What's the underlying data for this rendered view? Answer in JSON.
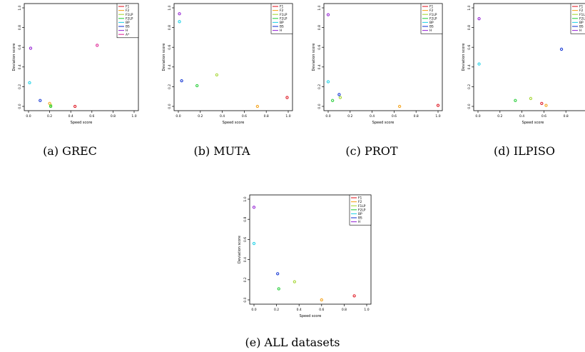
{
  "legend_labels": [
    "F1",
    "F2",
    "F1LP",
    "F2LP",
    "BP",
    "BS",
    "H",
    "A*"
  ],
  "colors": {
    "F1": "#e0212b",
    "F2": "#f5a623",
    "F1LP": "#a8d83a",
    "F2LP": "#2ccf3e",
    "BP": "#2ad4e8",
    "BS": "#1f3fd6",
    "H": "#9b2fd6",
    "A*": "#e0309a"
  },
  "chart_data": [
    {
      "type": "scatter",
      "title": "",
      "caption": "(a) GREC",
      "xlabel": "Speed score",
      "ylabel": "Deviation score",
      "xlim": [
        0,
        1
      ],
      "ylim": [
        0,
        1
      ],
      "xticks": [
        "0.0",
        "0.2",
        "0.4",
        "0.6",
        "0.8",
        "1.0"
      ],
      "yticks": [
        "0.0",
        "0.2",
        "0.4",
        "0.6",
        "0.8",
        "1.0"
      ],
      "legend_position": "top-right",
      "legend": [
        "F1",
        "F2",
        "F1LP",
        "F2LP",
        "BP",
        "BS",
        "H",
        "A*"
      ],
      "series": [
        {
          "name": "F1",
          "x": 0.44,
          "y": 0.0
        },
        {
          "name": "F2",
          "x": 0.2,
          "y": 0.03
        },
        {
          "name": "F1LP",
          "x": 0.21,
          "y": 0.01
        },
        {
          "name": "F2LP",
          "x": 0.21,
          "y": 0.0
        },
        {
          "name": "BP",
          "x": 0.01,
          "y": 0.24
        },
        {
          "name": "BS",
          "x": 0.11,
          "y": 0.06
        },
        {
          "name": "H",
          "x": 0.02,
          "y": 0.59
        },
        {
          "name": "A*",
          "x": 0.65,
          "y": 0.62
        }
      ]
    },
    {
      "type": "scatter",
      "title": "",
      "caption": "(b) MUTA",
      "xlabel": "Speed score",
      "ylabel": "Deviation score",
      "xlim": [
        0,
        1
      ],
      "ylim": [
        0,
        1
      ],
      "xticks": [
        "0.0",
        "0.2",
        "0.4",
        "0.6",
        "0.8",
        "1.0"
      ],
      "yticks": [
        "0.0",
        "0.2",
        "0.4",
        "0.6",
        "0.8",
        "1.0"
      ],
      "legend_position": "top-right",
      "legend": [
        "F1",
        "F2",
        "F1LP",
        "F2LP",
        "BP",
        "BS",
        "H"
      ],
      "series": [
        {
          "name": "F1",
          "x": 0.99,
          "y": 0.09
        },
        {
          "name": "F2",
          "x": 0.72,
          "y": 0.0
        },
        {
          "name": "F1LP",
          "x": 0.35,
          "y": 0.32
        },
        {
          "name": "F2LP",
          "x": 0.17,
          "y": 0.21
        },
        {
          "name": "BP",
          "x": 0.01,
          "y": 0.86
        },
        {
          "name": "BS",
          "x": 0.03,
          "y": 0.26
        },
        {
          "name": "H",
          "x": 0.01,
          "y": 0.94
        }
      ]
    },
    {
      "type": "scatter",
      "title": "",
      "caption": "(c) PROT",
      "xlabel": "Speed score",
      "ylabel": "Deviation score",
      "xlim": [
        0,
        1
      ],
      "ylim": [
        0,
        1
      ],
      "xticks": [
        "0.0",
        "0.2",
        "0.4",
        "0.6",
        "0.8",
        "1.0"
      ],
      "yticks": [
        "0.0",
        "0.2",
        "0.4",
        "0.6",
        "0.8",
        "1.0"
      ],
      "legend_position": "top-right",
      "legend": [
        "F1",
        "F2",
        "F1LP",
        "F2LP",
        "BP",
        "BS",
        "H"
      ],
      "series": [
        {
          "name": "F1",
          "x": 1.0,
          "y": 0.01
        },
        {
          "name": "F2",
          "x": 0.65,
          "y": 0.0
        },
        {
          "name": "F1LP",
          "x": 0.11,
          "y": 0.09
        },
        {
          "name": "F2LP",
          "x": 0.04,
          "y": 0.06
        },
        {
          "name": "BP",
          "x": 0.0,
          "y": 0.25
        },
        {
          "name": "BS",
          "x": 0.1,
          "y": 0.12
        },
        {
          "name": "H",
          "x": 0.0,
          "y": 0.93
        }
      ]
    },
    {
      "type": "scatter",
      "title": "",
      "caption": "(d) ILPISO",
      "xlabel": "Speed score",
      "ylabel": "Deviation score",
      "xlim": [
        0,
        1
      ],
      "ylim": [
        0,
        1
      ],
      "xticks": [
        "0.0",
        "0.2",
        "0.4",
        "0.6",
        "0.8"
      ],
      "yticks": [
        "0.0",
        "0.2",
        "0.4",
        "0.6",
        "0.8",
        "1.0"
      ],
      "legend_position": "top-right",
      "legend": [
        "F1",
        "F2",
        "F1LP",
        "F2LP",
        "BP",
        "BS",
        "H"
      ],
      "series": [
        {
          "name": "F1",
          "x": 0.58,
          "y": 0.03
        },
        {
          "name": "F2",
          "x": 0.62,
          "y": 0.01
        },
        {
          "name": "F1LP",
          "x": 0.48,
          "y": 0.08
        },
        {
          "name": "F2LP",
          "x": 0.34,
          "y": 0.06
        },
        {
          "name": "BP",
          "x": 0.01,
          "y": 0.43
        },
        {
          "name": "BS",
          "x": 0.76,
          "y": 0.58
        },
        {
          "name": "H",
          "x": 0.01,
          "y": 0.89
        }
      ]
    },
    {
      "type": "scatter",
      "title": "",
      "caption": "(e) ALL datasets",
      "xlabel": "Speed score",
      "ylabel": "Deviation score",
      "xlim": [
        0,
        1
      ],
      "ylim": [
        0,
        1
      ],
      "xticks": [
        "0.0",
        "0.2",
        "0.4",
        "0.6",
        "0.8",
        "1.0"
      ],
      "yticks": [
        "0.0",
        "0.2",
        "0.4",
        "0.6",
        "0.8",
        "1.0"
      ],
      "legend_position": "top-right",
      "legend": [
        "F1",
        "F2",
        "F1LP",
        "F2LP",
        "BP",
        "BS",
        "H"
      ],
      "series": [
        {
          "name": "F1",
          "x": 0.89,
          "y": 0.04
        },
        {
          "name": "F2",
          "x": 0.6,
          "y": 0.0
        },
        {
          "name": "F1LP",
          "x": 0.36,
          "y": 0.18
        },
        {
          "name": "F2LP",
          "x": 0.22,
          "y": 0.11
        },
        {
          "name": "BP",
          "x": 0.0,
          "y": 0.56
        },
        {
          "name": "BS",
          "x": 0.21,
          "y": 0.26
        },
        {
          "name": "H",
          "x": 0.0,
          "y": 0.92
        }
      ]
    }
  ]
}
